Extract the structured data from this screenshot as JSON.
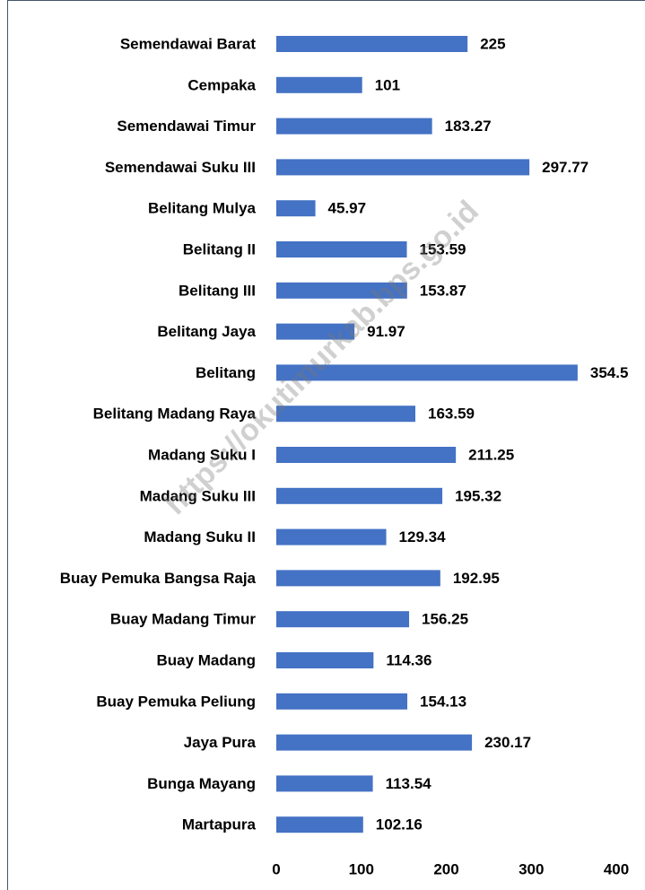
{
  "chart_data": {
    "type": "bar",
    "orientation": "horizontal",
    "categories": [
      "Semendawai Barat",
      "Cempaka",
      "Semendawai Timur",
      "Semendawai Suku III",
      "Belitang Mulya",
      "Belitang II",
      "Belitang III",
      "Belitang Jaya",
      "Belitang",
      "Belitang Madang Raya",
      "Madang Suku I",
      "Madang Suku III",
      "Madang Suku II",
      "Buay Pemuka Bangsa Raja",
      "Buay Madang Timur",
      "Buay Madang",
      "Buay Pemuka Peliung",
      "Jaya Pura",
      "Bunga Mayang",
      "Martapura"
    ],
    "values": [
      225,
      101,
      183.27,
      297.77,
      45.97,
      153.59,
      153.87,
      91.97,
      354.5,
      163.59,
      211.25,
      195.32,
      129.34,
      192.95,
      156.25,
      114.36,
      154.13,
      230.17,
      113.54,
      102.16
    ],
    "color": "#4472c4",
    "xlim": [
      0,
      400
    ],
    "xticks": [
      0,
      100,
      200,
      300,
      400
    ],
    "grid": false,
    "watermark": "https://okutimurkab.bps.go.id"
  }
}
